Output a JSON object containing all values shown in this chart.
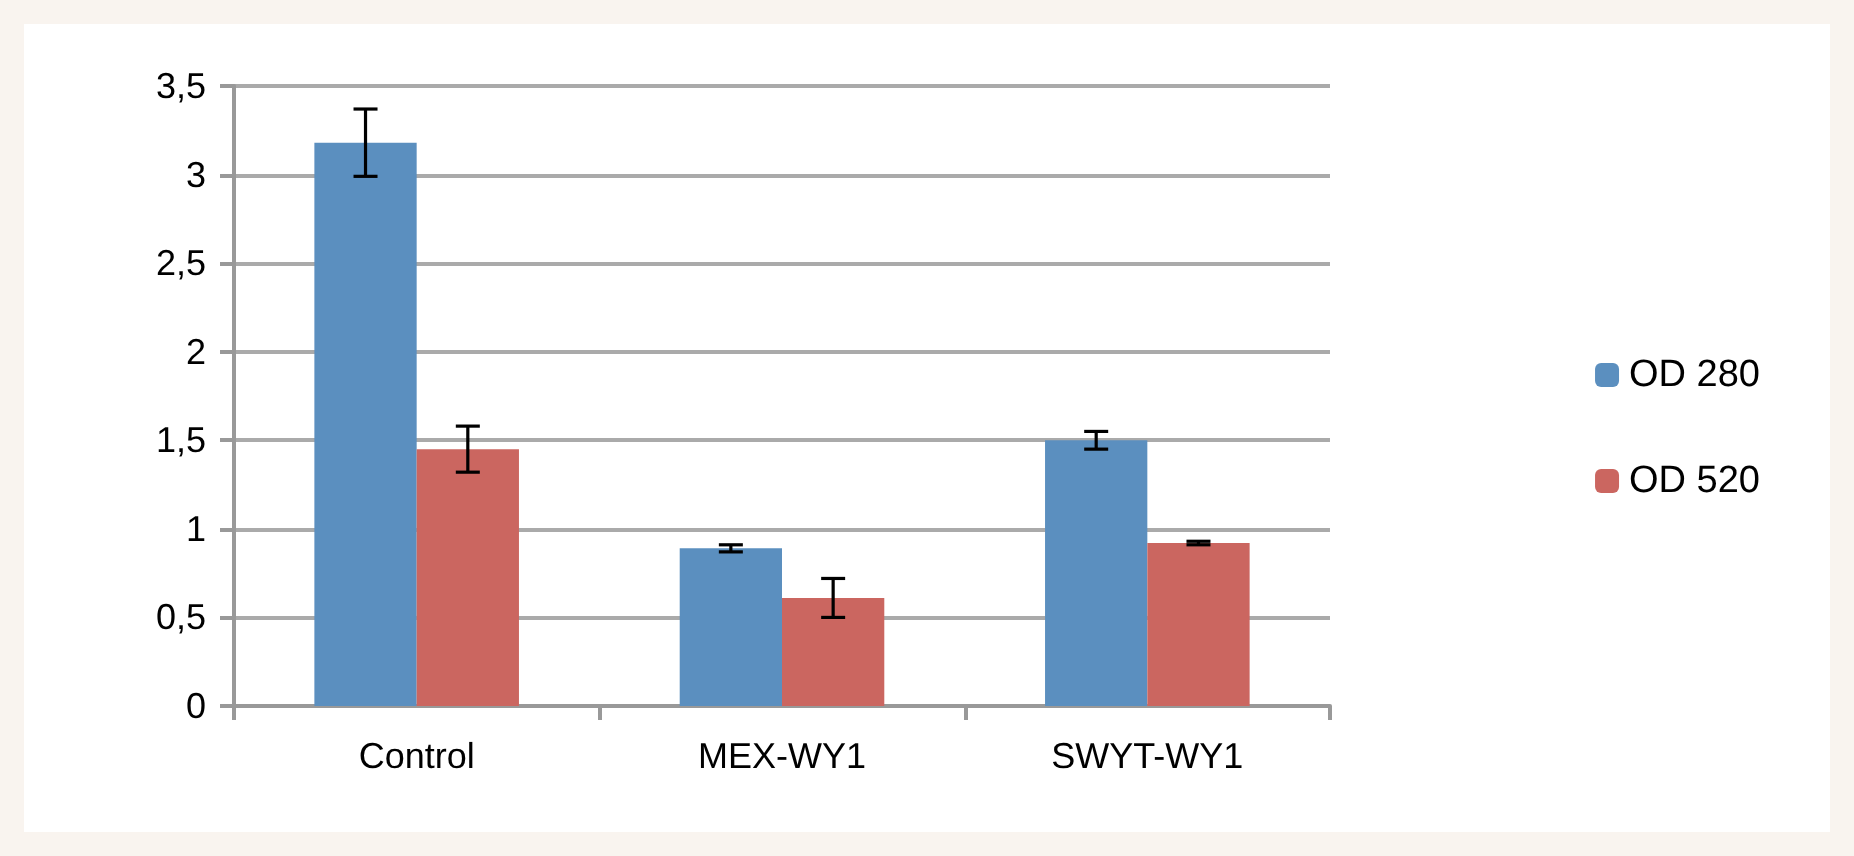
{
  "chart_data": {
    "type": "bar",
    "categories": [
      "Control",
      "MEX-WY1",
      "SWYT-WY1"
    ],
    "series": [
      {
        "name": "OD 280",
        "color": "#5b8fbf",
        "values": [
          3.18,
          0.89,
          1.5
        ],
        "errors": [
          0.19,
          0.02,
          0.05
        ]
      },
      {
        "name": "OD 520",
        "color": "#cb6660",
        "values": [
          1.45,
          0.61,
          0.92
        ],
        "errors": [
          0.13,
          0.11,
          0.01
        ]
      }
    ],
    "ylim": [
      0,
      3.5
    ],
    "yticks": [
      {
        "value": 0,
        "label": "0"
      },
      {
        "value": 0.5,
        "label": "0,5"
      },
      {
        "value": 1,
        "label": "1"
      },
      {
        "value": 1.5,
        "label": "1,5"
      },
      {
        "value": 2,
        "label": "2"
      },
      {
        "value": 2.5,
        "label": "2,5"
      },
      {
        "value": 3,
        "label": "3"
      },
      {
        "value": 3.5,
        "label": "3,5"
      }
    ],
    "grid": "y",
    "legend": "right"
  }
}
